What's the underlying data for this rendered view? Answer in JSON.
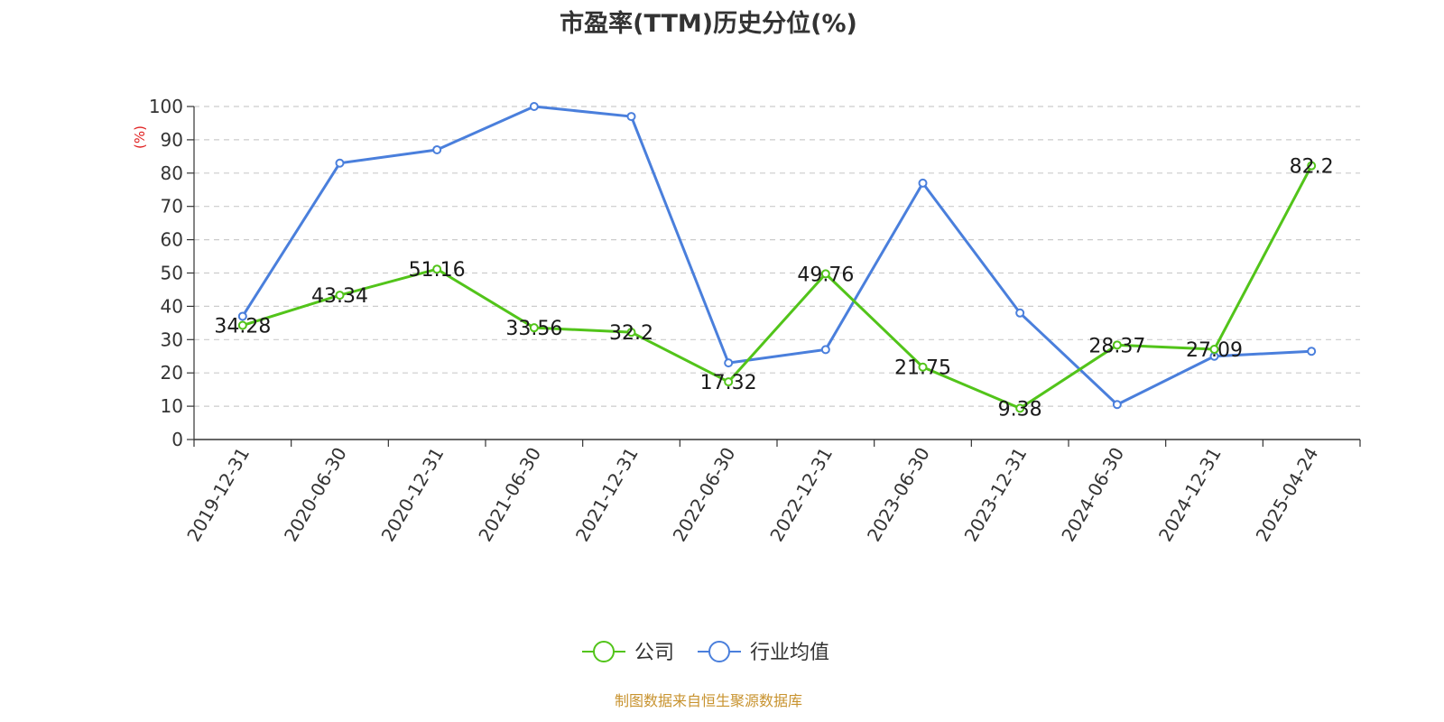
{
  "chart_data": {
    "type": "line",
    "title": "市盈率(TTM)历史分位(%)",
    "ylabel": "(%)",
    "xlabel": "",
    "ylim": [
      0,
      100
    ],
    "yticks": [
      0,
      10,
      20,
      30,
      40,
      50,
      60,
      70,
      80,
      90,
      100
    ],
    "categories": [
      "2019-12-31",
      "2020-06-30",
      "2020-12-31",
      "2021-06-30",
      "2021-12-31",
      "2022-06-30",
      "2022-12-31",
      "2023-06-30",
      "2023-12-31",
      "2024-06-30",
      "2024-12-31",
      "2025-04-24"
    ],
    "series": [
      {
        "name": "公司",
        "color": "#52c41a",
        "show_labels": true,
        "values": [
          34.28,
          43.34,
          51.16,
          33.56,
          32.2,
          17.32,
          49.76,
          21.75,
          9.38,
          28.37,
          27.09,
          82.2
        ]
      },
      {
        "name": "行业均值",
        "color": "#4a7fdc",
        "show_labels": false,
        "values": [
          37,
          83,
          87,
          100,
          97,
          23,
          27,
          77,
          38,
          10.5,
          25,
          26.5
        ]
      }
    ],
    "grid": true,
    "grid_style": "dashed",
    "legend_position": "bottom-center",
    "source": "制图数据来自恒生聚源数据库"
  }
}
